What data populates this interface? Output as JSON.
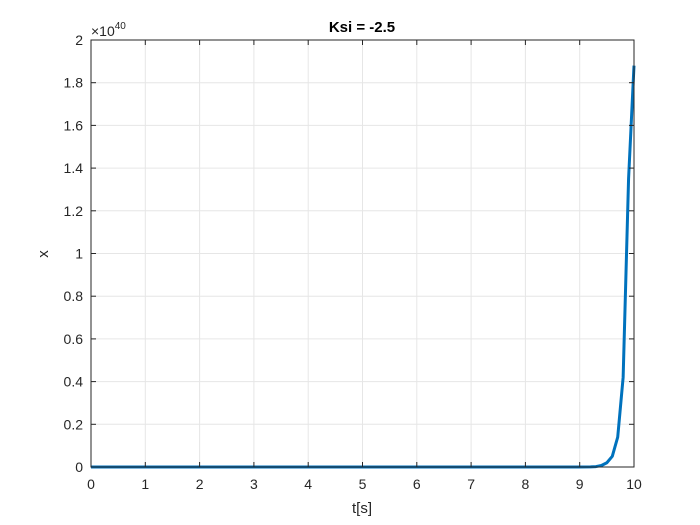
{
  "chart_data": {
    "type": "line",
    "title": "Ksi = -2.5",
    "xlabel": "t[s]",
    "ylabel": "x",
    "xlim": [
      0,
      10
    ],
    "ylim": [
      0,
      2
    ],
    "y_exponent_multiplier": "×10",
    "y_exponent_power": "40",
    "grid": true,
    "x_ticks": [
      "0",
      "1",
      "2",
      "3",
      "4",
      "5",
      "6",
      "7",
      "8",
      "9",
      "10"
    ],
    "y_ticks": [
      "0",
      "0.2",
      "0.4",
      "0.6",
      "0.8",
      "1",
      "1.2",
      "1.4",
      "1.6",
      "1.8",
      "2"
    ],
    "series": [
      {
        "color": "#0072BD",
        "x": [
          0,
          9.0,
          9.2,
          9.3,
          9.4,
          9.5,
          9.6,
          9.7,
          9.8,
          9.9,
          10.0
        ],
        "y": [
          0,
          0,
          0.0005,
          0.002,
          0.007,
          0.02,
          0.05,
          0.14,
          0.42,
          1.35,
          1.88
        ]
      }
    ]
  }
}
